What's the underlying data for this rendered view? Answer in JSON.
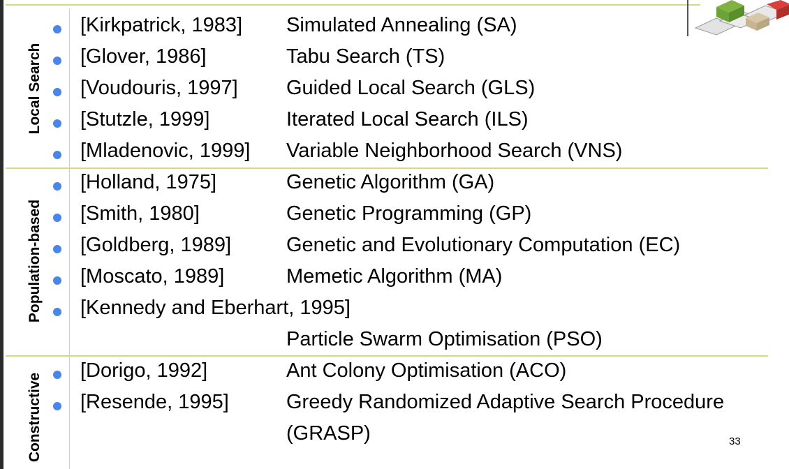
{
  "sections": [
    {
      "label": "Local Search"
    },
    {
      "label": "Population-based"
    },
    {
      "label": "Constructive"
    }
  ],
  "rows": [
    {
      "ref": "[Kirkpatrick, 1983]",
      "algorithm": "Simulated Annealing (SA)"
    },
    {
      "ref": "[Glover, 1986]",
      "algorithm": "Tabu Search (TS)"
    },
    {
      "ref": "[Voudouris, 1997]",
      "algorithm": "Guided Local Search (GLS)"
    },
    {
      "ref": "[Stutzle, 1999]",
      "algorithm": "Iterated Local Search (ILS)"
    },
    {
      "ref": "[Mladenovic, 1999]",
      "algorithm": "Variable Neighborhood Search (VNS)"
    },
    {
      "ref": "[Holland,  1975]",
      "algorithm": "Genetic Algorithm (GA)"
    },
    {
      "ref": "[Smith, 1980]",
      "algorithm": "Genetic Programming (GP)"
    },
    {
      "ref": "[Goldberg, 1989]",
      "algorithm": "Genetic and Evolutionary Computation (EC)"
    },
    {
      "ref": "[Moscato, 1989]",
      "algorithm": "Memetic Algorithm (MA)"
    },
    {
      "ref": "[Kennedy and Eberhart, 1995]",
      "algorithm": ""
    },
    {
      "ref": "",
      "algorithm": "Particle Swarm Optimisation (PSO)"
    },
    {
      "ref": "[Dorigo, 1992]",
      "algorithm": "Ant Colony Optimisation (ACO)"
    },
    {
      "ref": "[Resende, 1995]",
      "algorithm": "Greedy Randomized Adaptive Search Procedure"
    },
    {
      "ref": "",
      "algorithm": "(GRASP)"
    }
  ],
  "page_number": "33",
  "colors": {
    "bullet": "#4a86e8",
    "rule": "#d4d88a"
  }
}
